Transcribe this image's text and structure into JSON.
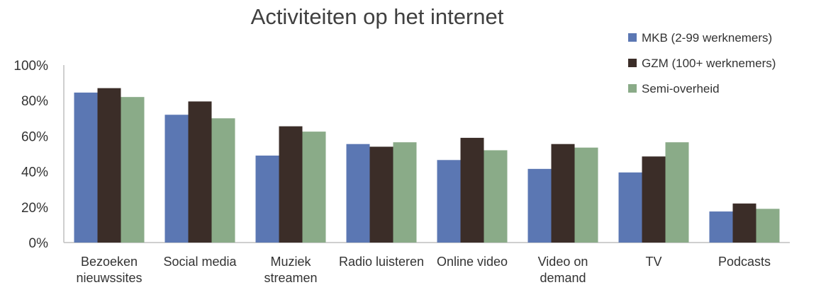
{
  "chart_data": {
    "type": "bar",
    "title": "Activiteiten op het internet",
    "xlabel": "",
    "ylabel": "",
    "ylim": [
      0,
      1
    ],
    "yticks": [
      "0%",
      "20%",
      "40%",
      "60%",
      "80%",
      "100%"
    ],
    "legend_position": "top-right",
    "categories": [
      [
        "Bezoeken",
        "nieuwssites"
      ],
      [
        "Social media"
      ],
      [
        "Muziek",
        "streamen"
      ],
      [
        "Radio luisteren"
      ],
      [
        "Online video"
      ],
      [
        "Video on",
        "demand"
      ],
      [
        "TV"
      ],
      [
        "Podcasts"
      ]
    ],
    "series": [
      {
        "name": "MKB (2-99 werknemers)",
        "color": "#5b77b3",
        "values": [
          0.845,
          0.72,
          0.49,
          0.555,
          0.465,
          0.415,
          0.395,
          0.175
        ]
      },
      {
        "name": "GZM (100+ werknemers)",
        "color": "#3b2d28",
        "values": [
          0.87,
          0.795,
          0.655,
          0.54,
          0.59,
          0.555,
          0.485,
          0.22
        ]
      },
      {
        "name": "Semi-overheid",
        "color": "#8aab88",
        "values": [
          0.82,
          0.7,
          0.625,
          0.565,
          0.52,
          0.535,
          0.565,
          0.19
        ]
      }
    ]
  }
}
